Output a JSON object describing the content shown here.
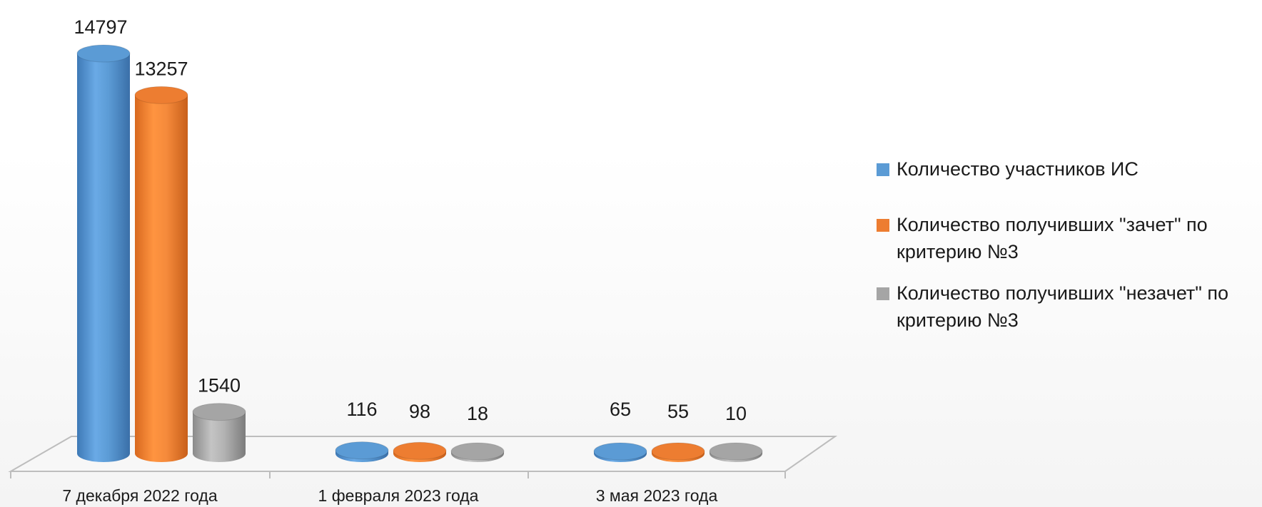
{
  "chart_data": {
    "type": "bar",
    "categories": [
      "7 декабря 2022 года",
      "1 февраля 2023 года",
      "3 мая 2023 года"
    ],
    "series": [
      {
        "name": "Количество участников ИС",
        "values": [
          14797,
          116,
          65
        ],
        "color": "#5b9bd5"
      },
      {
        "name": "Количество получивших \"зачет\" по критерию №3",
        "values": [
          13257,
          98,
          55
        ],
        "color": "#ed7d31"
      },
      {
        "name": "Количество получивших \"незачет\" по критерию №3",
        "values": [
          1540,
          18,
          10
        ],
        "color": "#a5a5a5"
      }
    ],
    "data_labels": [
      [
        "14797",
        "116",
        "65"
      ],
      [
        "13257",
        "98",
        "55"
      ],
      [
        "1540",
        "18",
        "10"
      ]
    ],
    "legend_position": "right",
    "grid": false,
    "style": "3d-cylinder"
  }
}
